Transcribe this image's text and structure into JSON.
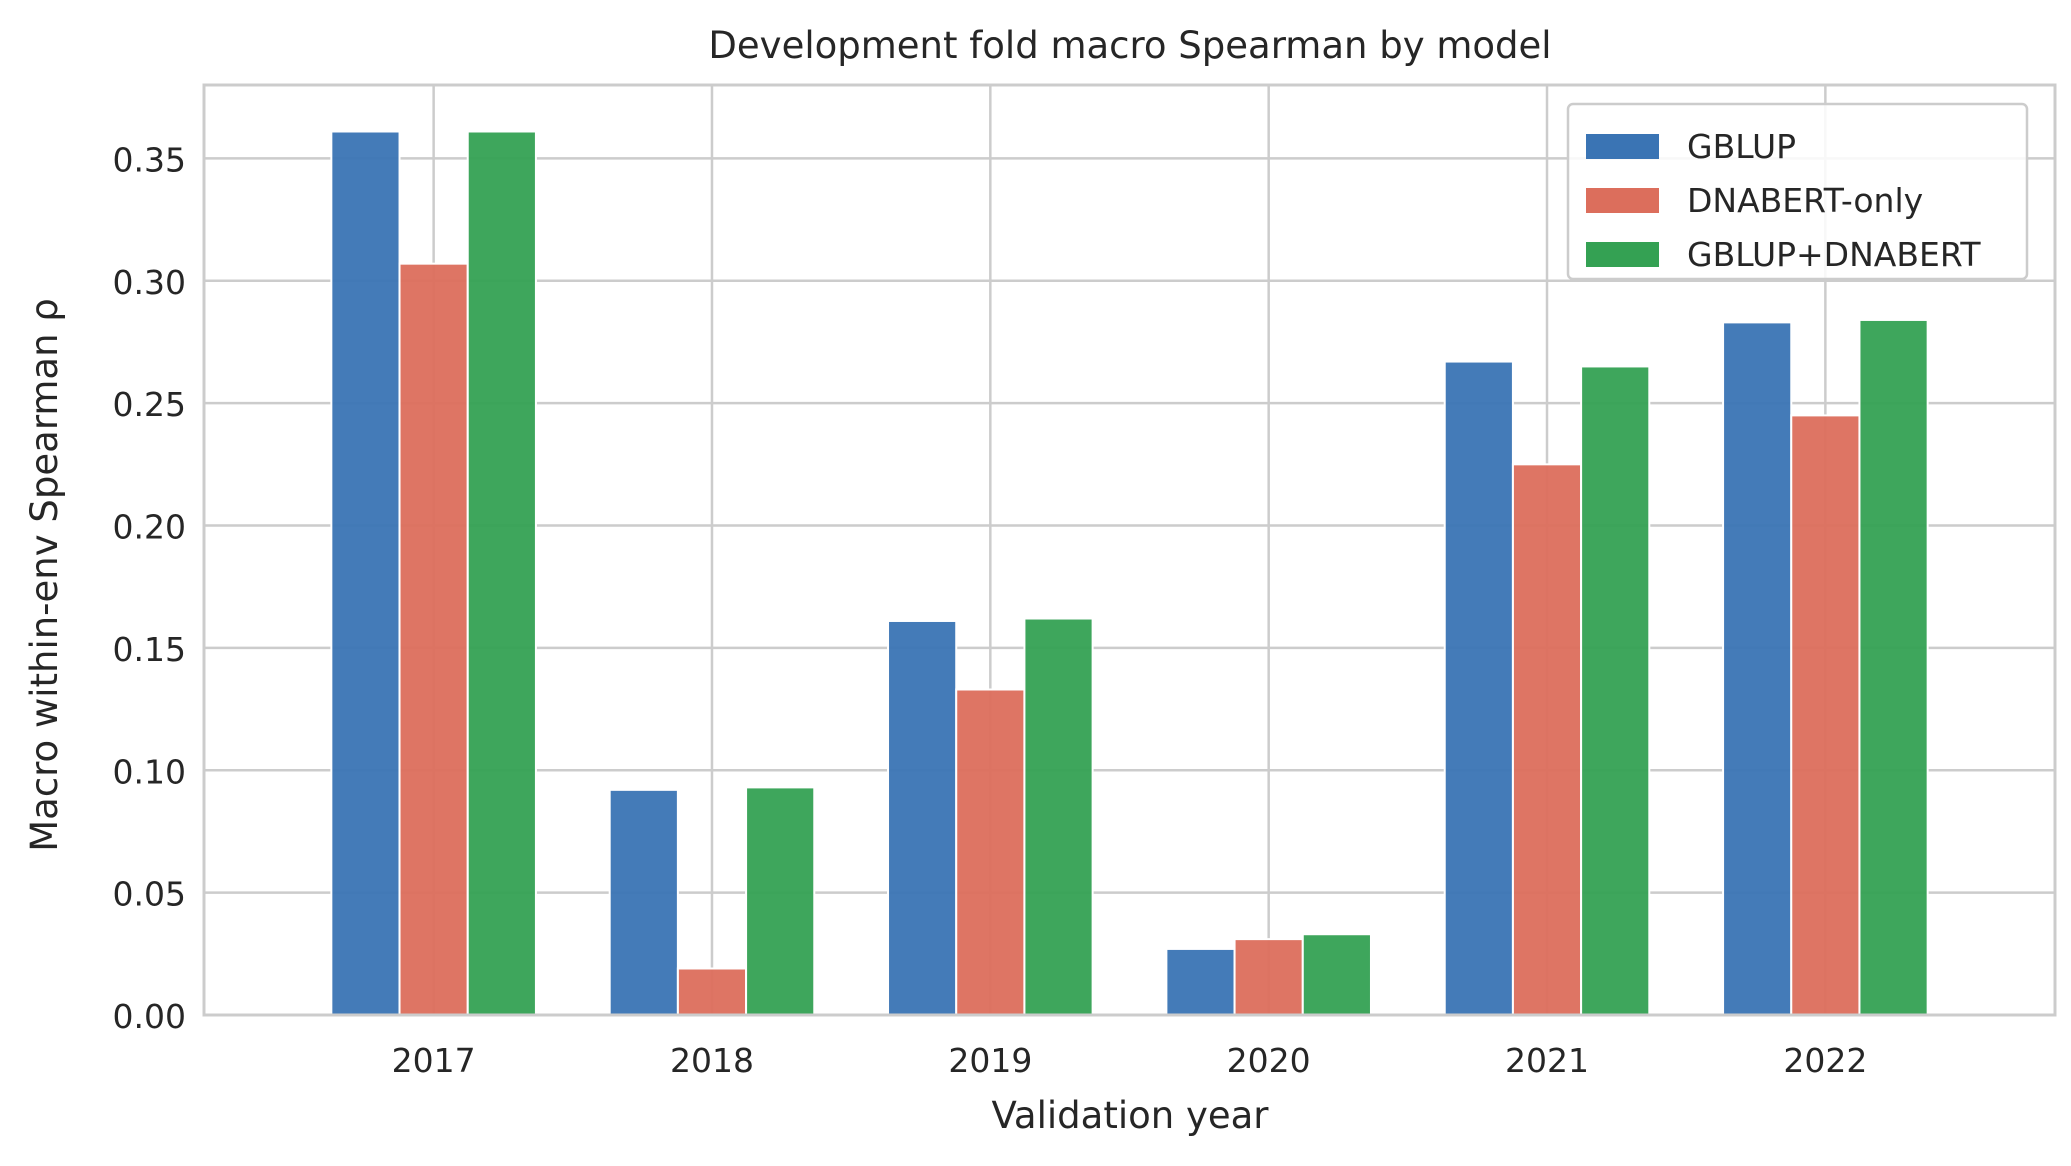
{
  "chart_data": {
    "type": "bar",
    "title": "Development fold macro Spearman by model",
    "xlabel": "Validation year",
    "ylabel": "Macro within-env Spearman ρ",
    "categories": [
      "2017",
      "2018",
      "2019",
      "2020",
      "2021",
      "2022"
    ],
    "ylim": [
      0,
      0.38
    ],
    "yticks": [
      "0.00",
      "0.05",
      "0.10",
      "0.15",
      "0.20",
      "0.25",
      "0.30",
      "0.35"
    ],
    "grid": true,
    "legend_position": "top-right",
    "series": [
      {
        "name": "GBLUP",
        "color": "#3a74b4",
        "values": [
          0.361,
          0.092,
          0.161,
          0.027,
          0.267,
          0.283
        ]
      },
      {
        "name": "DNABERT-only",
        "color": "#dc6e5c",
        "values": [
          0.307,
          0.019,
          0.133,
          0.031,
          0.225,
          0.245
        ]
      },
      {
        "name": "GBLUP+DNABERT",
        "color": "#34a153",
        "values": [
          0.361,
          0.093,
          0.162,
          0.033,
          0.265,
          0.284
        ]
      }
    ]
  }
}
